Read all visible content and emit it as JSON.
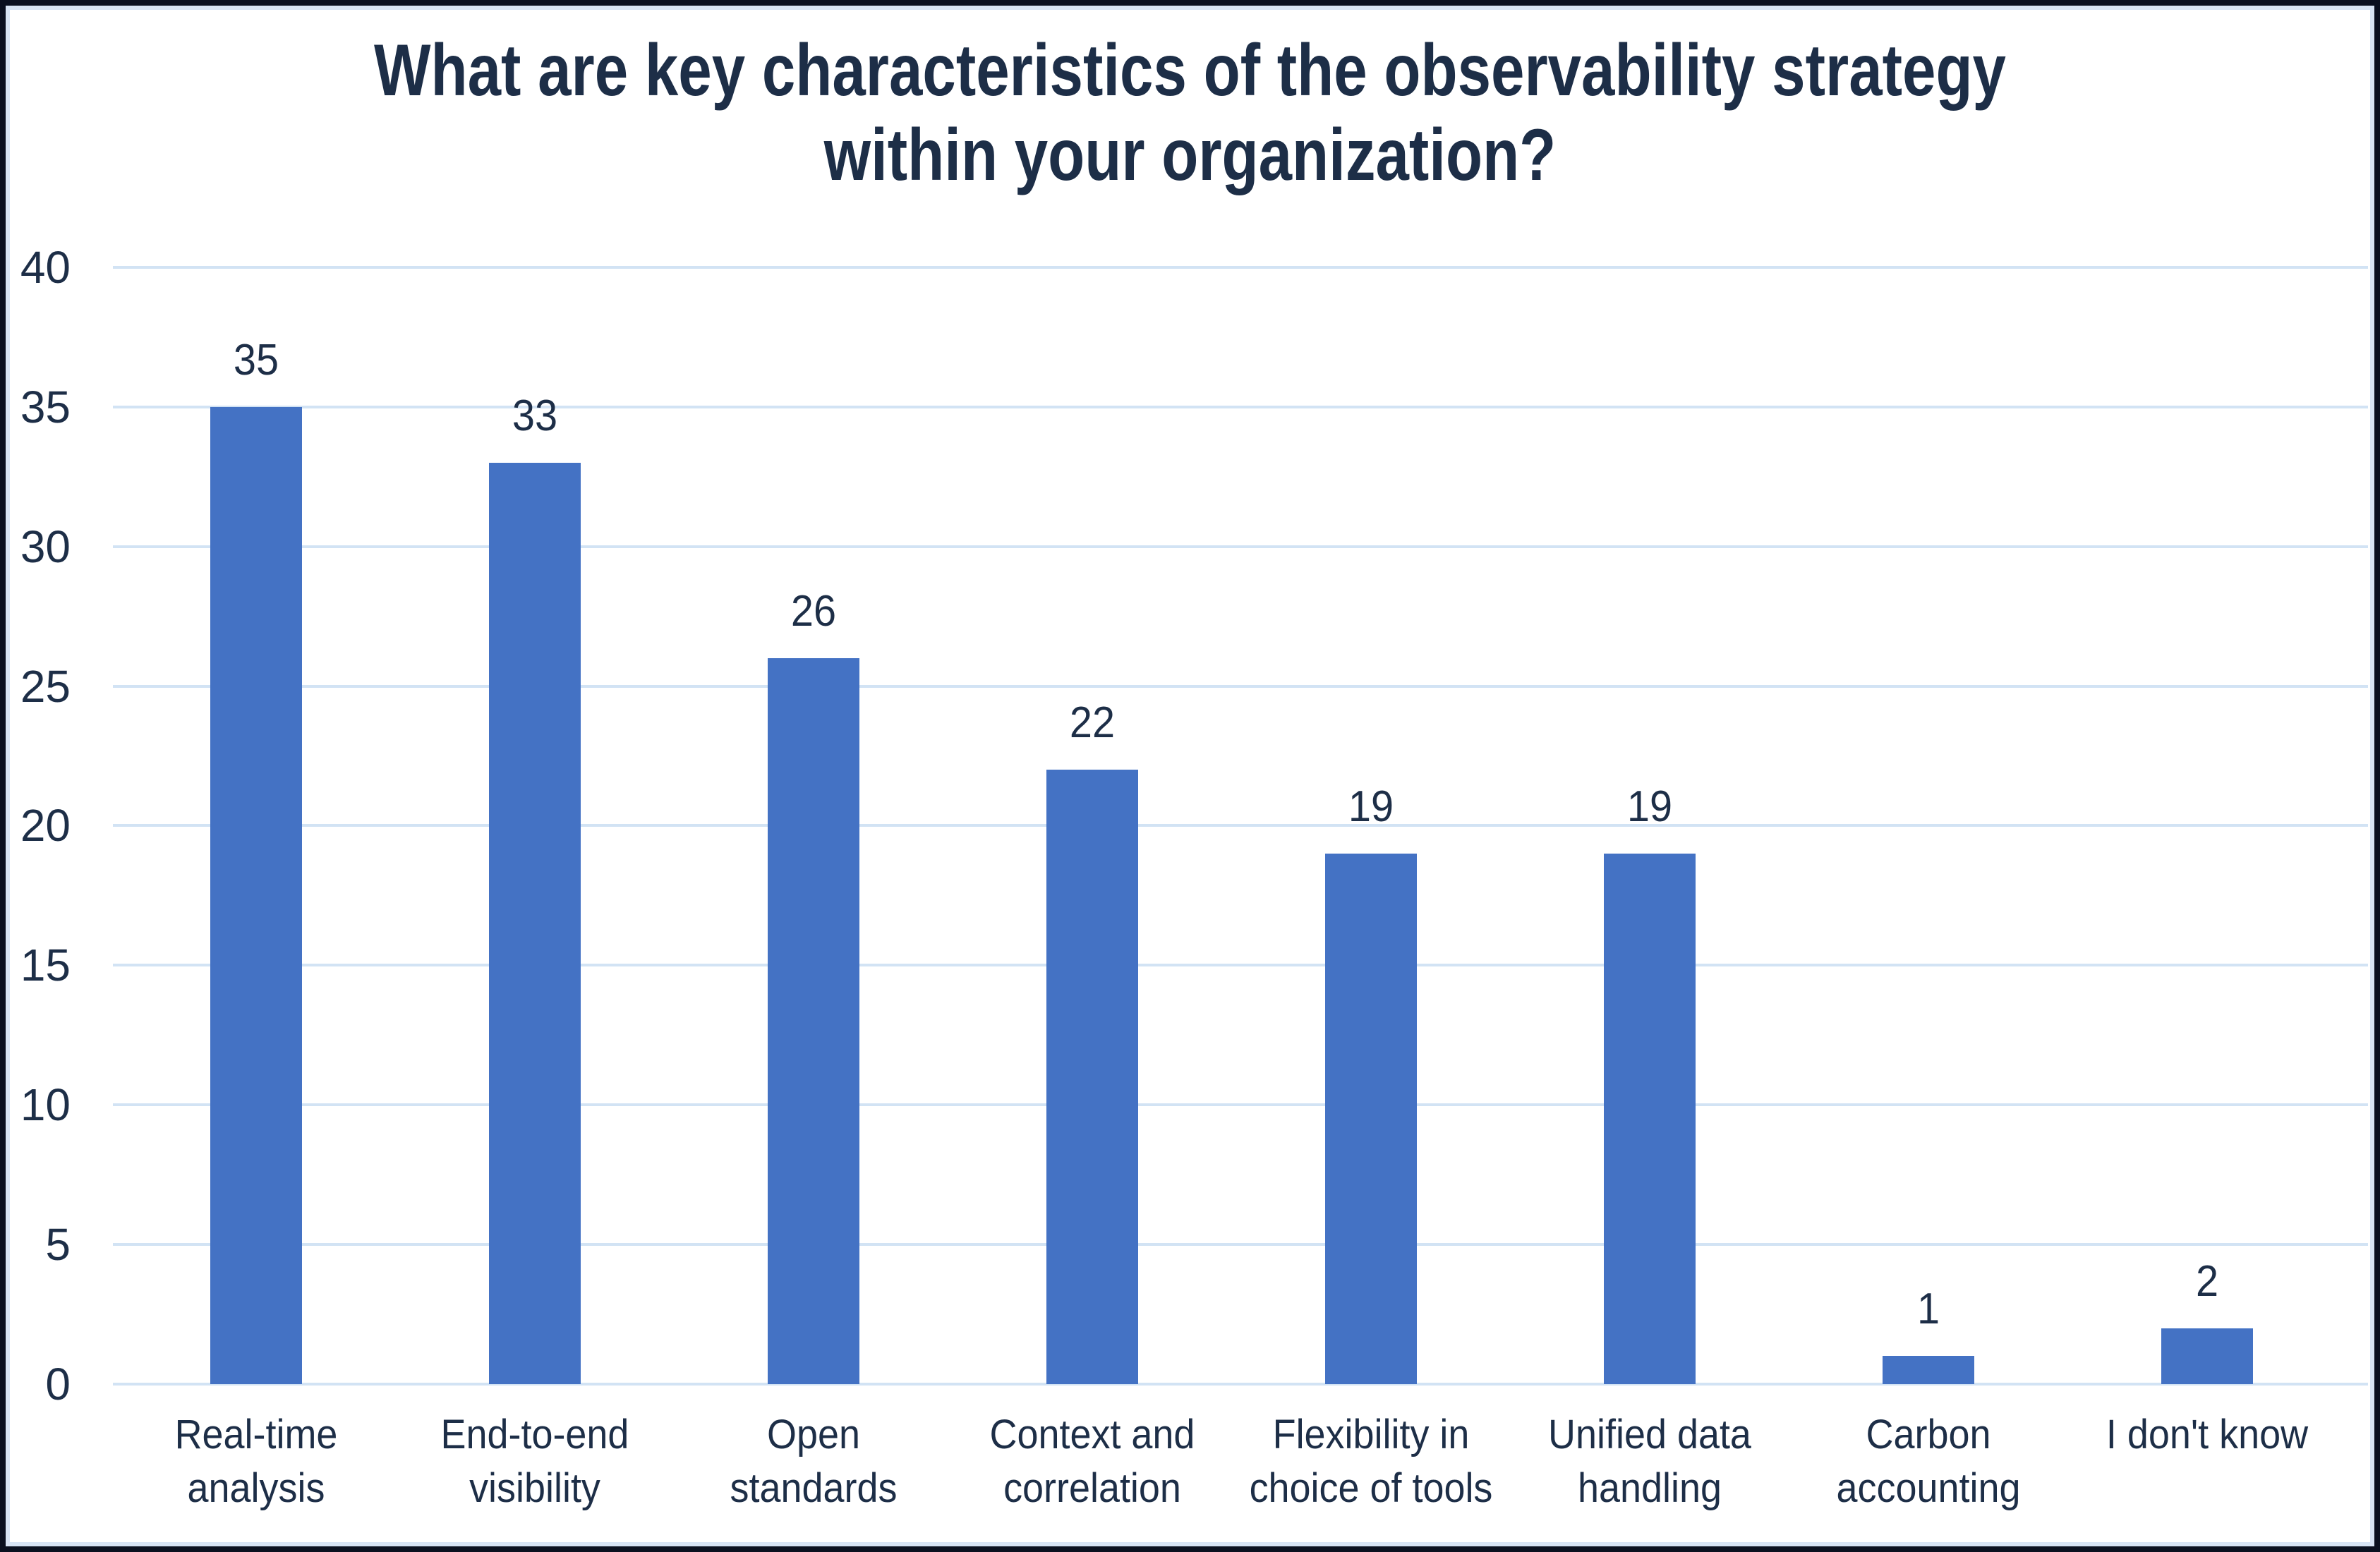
{
  "chart_data": {
    "type": "bar",
    "title": "What are key characteristics of the observability strategy within your organization?",
    "title_lines": [
      "What are key characteristics of the observability strategy",
      "within your organization?"
    ],
    "categories": [
      "Real-time analysis",
      "End-to-end visibility",
      "Open standards",
      "Context and correlation",
      "Flexibility in choice of tools",
      "Unified data handling",
      "Carbon accounting",
      "I don't know"
    ],
    "category_lines": [
      [
        "Real-time",
        "analysis"
      ],
      [
        "End-to-end",
        "visibility"
      ],
      [
        "Open",
        "standards"
      ],
      [
        "Context and",
        "correlation"
      ],
      [
        "Flexibility in",
        "choice of tools"
      ],
      [
        "Unified data",
        "handling"
      ],
      [
        "Carbon",
        "accounting"
      ],
      [
        "I don't know"
      ]
    ],
    "values": [
      35,
      33,
      26,
      22,
      19,
      19,
      1,
      2
    ],
    "data_labels": [
      "35",
      "33",
      "26",
      "22",
      "19",
      "19",
      "1",
      "2"
    ],
    "xlabel": "",
    "ylabel": "",
    "ylim": [
      0,
      40
    ],
    "ytick_step": 5,
    "ytick_labels": [
      "0",
      "5",
      "10",
      "15",
      "20",
      "25",
      "30",
      "35",
      "40"
    ],
    "grid": "horizontal",
    "legend": "none",
    "colors": {
      "bar": "#4472C4",
      "text": "#1d2e47",
      "gridline": "#d2e3f4",
      "frame_outer": "#0a101f",
      "frame_inner": "#d7e4f4",
      "background": "#ffffff"
    }
  }
}
